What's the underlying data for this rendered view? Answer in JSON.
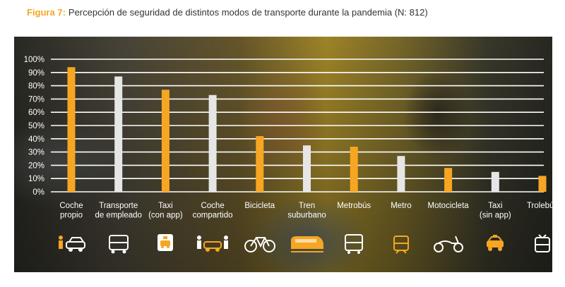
{
  "figure": {
    "label": "Figura 7:",
    "title": "Percepción de seguridad de distintos modos de transporte durante la pandemia (N: 812)"
  },
  "colors": {
    "highlight": "#f6a623",
    "neutral": "#e6e6e6",
    "grid": "#ffffff",
    "label": "#ffffff"
  },
  "chart_data": {
    "type": "bar",
    "categories": [
      [
        "Coche",
        "propio"
      ],
      [
        "Transporte",
        "de empleado"
      ],
      [
        "Taxi",
        "(con app)"
      ],
      [
        "Coche",
        "compartido"
      ],
      [
        "Bicicleta"
      ],
      [
        "Tren",
        "suburbano"
      ],
      [
        "Metrobús"
      ],
      [
        "Metro"
      ],
      [
        "Motocicleta"
      ],
      [
        "Taxi",
        "(sin app)"
      ],
      [
        "Trolebús"
      ]
    ],
    "values": [
      94,
      87,
      77,
      73,
      42,
      35,
      34,
      27,
      18,
      15,
      12
    ],
    "bar_colors": [
      "highlight",
      "neutral",
      "highlight",
      "neutral",
      "highlight",
      "neutral",
      "highlight",
      "neutral",
      "highlight",
      "neutral",
      "highlight"
    ],
    "ylim": [
      0,
      100
    ],
    "yticks": [
      "0%",
      "10%",
      "20%",
      "30%",
      "40%",
      "50%",
      "60%",
      "70%",
      "80%",
      "90%",
      "100%"
    ],
    "grid": true,
    "xlabel": "",
    "ylabel": ""
  },
  "icons": [
    "person-car-icon",
    "bus-icon",
    "taxi-app-icon",
    "carpool-icon",
    "bicycle-icon",
    "train-icon",
    "metrobus-icon",
    "metro-icon",
    "scooter-icon",
    "taxi-icon",
    "trolleybus-icon"
  ]
}
